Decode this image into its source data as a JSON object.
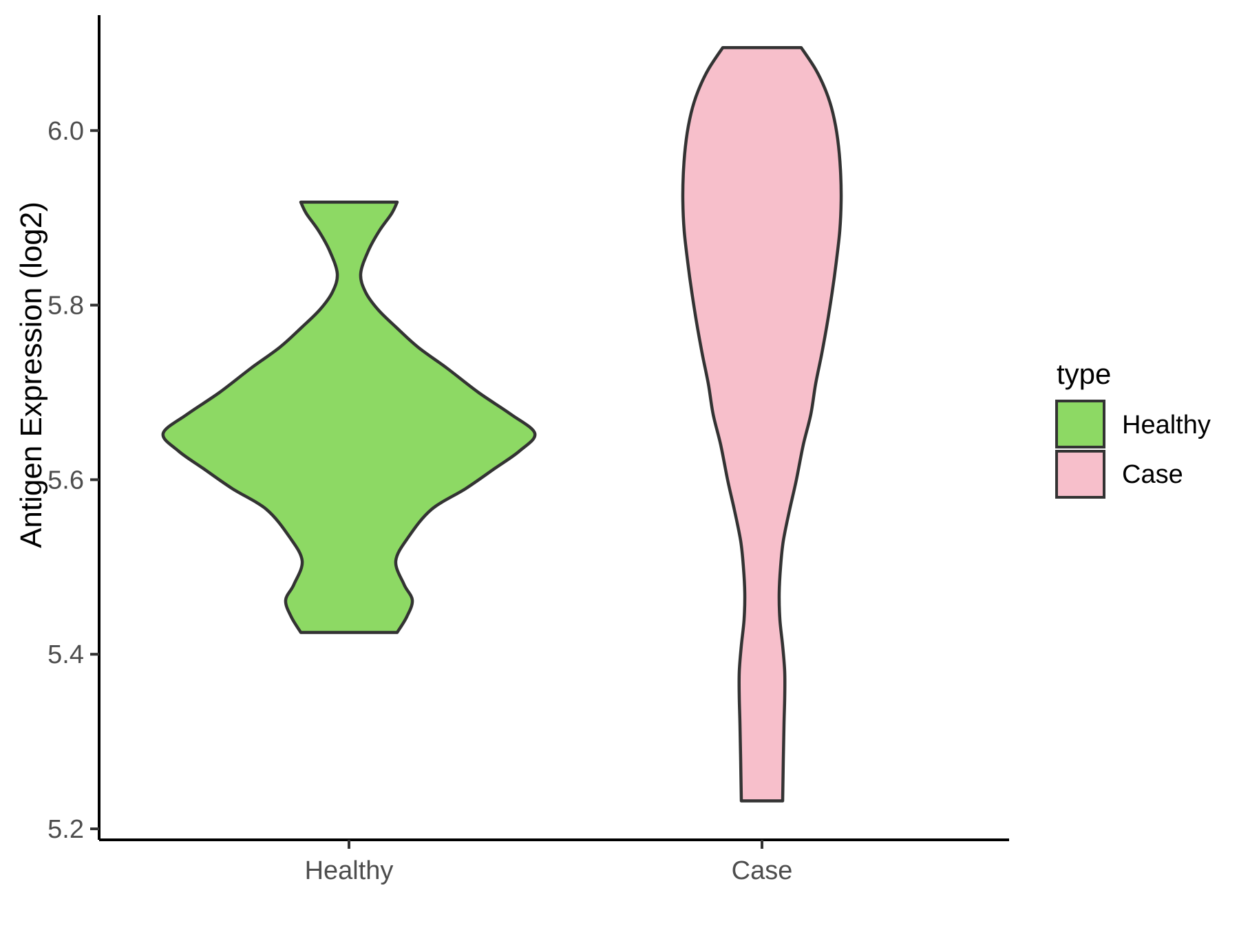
{
  "figure": {
    "background": "#ffffff"
  },
  "chart_data": {
    "type": "violin",
    "title": "",
    "xlabel": "",
    "ylabel": "Antigen Expression (log2)",
    "categories": [
      "Healthy",
      "Case"
    ],
    "y_axis": {
      "min": 5.2,
      "max": 6.1,
      "ticks": [
        {
          "value": 6.0,
          "label": "6.0"
        },
        {
          "value": 5.8,
          "label": "5.8"
        },
        {
          "value": 5.6,
          "label": "5.6"
        },
        {
          "value": 5.4,
          "label": "5.4"
        },
        {
          "value": 5.2,
          "label": "5.2"
        }
      ]
    },
    "grid": "off",
    "legend_position": "right",
    "stroke_color": "#333333",
    "axis_line_color": "#000000",
    "tick_mark_color": "#333333",
    "tick_label_color": "#4d4d4d",
    "series": [
      {
        "name": "Healthy",
        "color": "#8DD964",
        "y_range": [
          5.425,
          5.918
        ],
        "density_profile": [
          [
            5.918,
            70
          ],
          [
            5.905,
            62
          ],
          [
            5.885,
            44
          ],
          [
            5.862,
            28
          ],
          [
            5.836,
            17
          ],
          [
            5.815,
            24
          ],
          [
            5.795,
            42
          ],
          [
            5.775,
            68
          ],
          [
            5.752,
            100
          ],
          [
            5.728,
            142
          ],
          [
            5.7,
            188
          ],
          [
            5.675,
            235
          ],
          [
            5.653,
            270
          ],
          [
            5.633,
            248
          ],
          [
            5.613,
            212
          ],
          [
            5.59,
            170
          ],
          [
            5.566,
            120
          ],
          [
            5.535,
            87
          ],
          [
            5.507,
            68
          ],
          [
            5.48,
            80
          ],
          [
            5.462,
            92
          ],
          [
            5.443,
            84
          ],
          [
            5.425,
            70
          ]
        ]
      },
      {
        "name": "Case",
        "color": "#F7BFCB",
        "y_range": [
          5.232,
          6.095
        ],
        "density_profile": [
          [
            6.095,
            57
          ],
          [
            6.07,
            78
          ],
          [
            6.045,
            93
          ],
          [
            6.02,
            103
          ],
          [
            5.99,
            110
          ],
          [
            5.955,
            114
          ],
          [
            5.92,
            115
          ],
          [
            5.885,
            113
          ],
          [
            5.85,
            108
          ],
          [
            5.815,
            102
          ],
          [
            5.78,
            95
          ],
          [
            5.745,
            87
          ],
          [
            5.71,
            78
          ],
          [
            5.675,
            71
          ],
          [
            5.64,
            60
          ],
          [
            5.6,
            50
          ],
          [
            5.565,
            40
          ],
          [
            5.53,
            31
          ],
          [
            5.5,
            27
          ],
          [
            5.47,
            25
          ],
          [
            5.44,
            26
          ],
          [
            5.41,
            30
          ],
          [
            5.38,
            33
          ],
          [
            5.35,
            33
          ],
          [
            5.32,
            32
          ],
          [
            5.28,
            31
          ],
          [
            5.232,
            30
          ]
        ]
      }
    ]
  },
  "legend": {
    "title": "type",
    "items": [
      {
        "label": "Healthy",
        "color": "#8DD964"
      },
      {
        "label": "Case",
        "color": "#F7BFCB"
      }
    ]
  }
}
